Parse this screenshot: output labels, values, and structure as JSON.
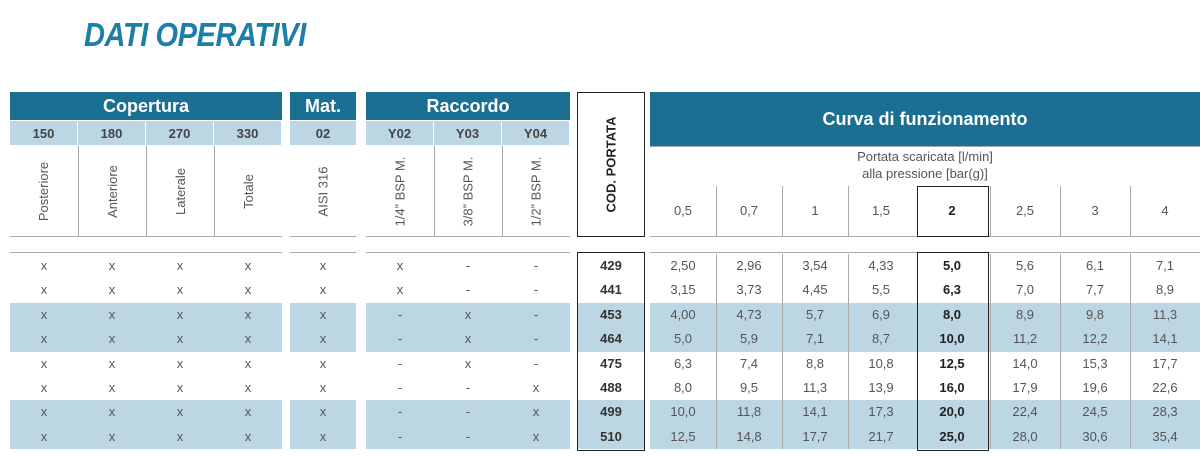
{
  "title": "DATI OPERATIVI",
  "groups": {
    "copertura": "Copertura",
    "mat": "Mat.",
    "raccordo": "Raccordo",
    "cod_portata": "COD. PORTATA",
    "curva": "Curva di funzionamento"
  },
  "codes": {
    "copertura": [
      "150",
      "180",
      "270",
      "330"
    ],
    "mat": [
      "02"
    ],
    "raccordo": [
      "Y02",
      "Y03",
      "Y04"
    ]
  },
  "descriptions": {
    "copertura": [
      "Posteriore",
      "Anteriore",
      "Laterale",
      "Totale"
    ],
    "mat": [
      "AISI 316"
    ],
    "raccordo": [
      "1/4” BSP M.",
      "3/8” BSP M.",
      "1/2” BSP M."
    ]
  },
  "curve_caption": {
    "line1": "Portata scaricata [l/min]",
    "line2": "alla pressione [bar(g)]"
  },
  "pressures": [
    "0,5",
    "0,7",
    "1",
    "1,5",
    "2",
    "2,5",
    "3",
    "4"
  ],
  "highlight_pressure_index": 4,
  "colors": {
    "header": "#1a6f93",
    "band": "#bcd6e4",
    "title": "#1d7fa8"
  },
  "rows": [
    {
      "cop": [
        "x",
        "x",
        "x",
        "x"
      ],
      "mat": "x",
      "racc": [
        "x",
        "-",
        "-"
      ],
      "code": "429",
      "flows": [
        "2,50",
        "2,96",
        "3,54",
        "4,33",
        "5,0",
        "5,6",
        "6,1",
        "7,1"
      ]
    },
    {
      "cop": [
        "x",
        "x",
        "x",
        "x"
      ],
      "mat": "x",
      "racc": [
        "x",
        "-",
        "-"
      ],
      "code": "441",
      "flows": [
        "3,15",
        "3,73",
        "4,45",
        "5,5",
        "6,3",
        "7,0",
        "7,7",
        "8,9"
      ]
    },
    {
      "cop": [
        "x",
        "x",
        "x",
        "x"
      ],
      "mat": "x",
      "racc": [
        "-",
        "x",
        "-"
      ],
      "code": "453",
      "flows": [
        "4,00",
        "4,73",
        "5,7",
        "6,9",
        "8,0",
        "8,9",
        "9,8",
        "11,3"
      ]
    },
    {
      "cop": [
        "x",
        "x",
        "x",
        "x"
      ],
      "mat": "x",
      "racc": [
        "-",
        "x",
        "-"
      ],
      "code": "464",
      "flows": [
        "5,0",
        "5,9",
        "7,1",
        "8,7",
        "10,0",
        "11,2",
        "12,2",
        "14,1"
      ]
    },
    {
      "cop": [
        "x",
        "x",
        "x",
        "x"
      ],
      "mat": "x",
      "racc": [
        "-",
        "x",
        "-"
      ],
      "code": "475",
      "flows": [
        "6,3",
        "7,4",
        "8,8",
        "10,8",
        "12,5",
        "14,0",
        "15,3",
        "17,7"
      ]
    },
    {
      "cop": [
        "x",
        "x",
        "x",
        "x"
      ],
      "mat": "x",
      "racc": [
        "-",
        "-",
        "x"
      ],
      "code": "488",
      "flows": [
        "8,0",
        "9,5",
        "11,3",
        "13,9",
        "16,0",
        "17,9",
        "19,6",
        "22,6"
      ]
    },
    {
      "cop": [
        "x",
        "x",
        "x",
        "x"
      ],
      "mat": "x",
      "racc": [
        "-",
        "-",
        "x"
      ],
      "code": "499",
      "flows": [
        "10,0",
        "11,8",
        "14,1",
        "17,3",
        "20,0",
        "22,4",
        "24,5",
        "28,3"
      ]
    },
    {
      "cop": [
        "x",
        "x",
        "x",
        "x"
      ],
      "mat": "x",
      "racc": [
        "-",
        "-",
        "x"
      ],
      "code": "510",
      "flows": [
        "12,5",
        "14,8",
        "17,7",
        "21,7",
        "25,0",
        "28,0",
        "30,6",
        "35,4"
      ]
    }
  ]
}
